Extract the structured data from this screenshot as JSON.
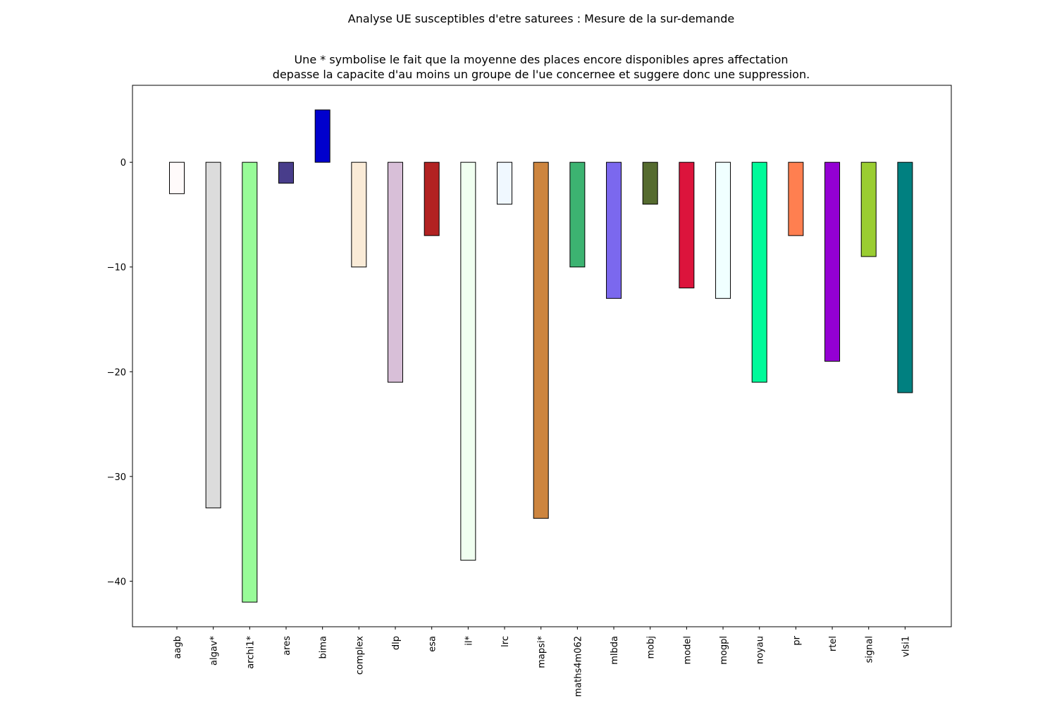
{
  "chart_data": {
    "type": "bar",
    "suptitle": "Analyse UE susceptibles d'etre saturees : Mesure de la sur-demande",
    "title_lines": [
      "Une * symbolise le fait que la moyenne des places encore disponibles apres affectation",
      "depasse la capacite d'au moins un groupe de l'ue concernee et suggere donc une suppression."
    ],
    "categories": [
      "aagb",
      "algav*",
      "archi1*",
      "ares",
      "bima",
      "complex",
      "dlp",
      "esa",
      "il*",
      "lrc",
      "mapsi*",
      "maths4m062",
      "mlbda",
      "mobj",
      "model",
      "mogpl",
      "noyau",
      "pr",
      "rtel",
      "signal",
      "vlsi1"
    ],
    "values": [
      -3,
      -33,
      -42,
      -2,
      5,
      -10,
      -21,
      -7,
      -38,
      -4,
      -34,
      -10,
      -13,
      -4,
      -12,
      -13,
      -21,
      -7,
      -19,
      -9,
      -22
    ],
    "colors": [
      "#fffafa",
      "#dcdcdc",
      "#98fb98",
      "#483d8b",
      "#0000cd",
      "#faebd7",
      "#d8bfd8",
      "#b22222",
      "#f0fff0",
      "#f0f8ff",
      "#cd853f",
      "#3cb371",
      "#7b68ee",
      "#556b2f",
      "#dc143c",
      "#f0ffff",
      "#00fa9a",
      "#ff7f50",
      "#9400d3",
      "#9acd32",
      "#008080"
    ],
    "yticks": [
      0,
      -10,
      -20,
      -30,
      -40
    ],
    "ytick_labels": [
      "0",
      "−10",
      "−20",
      "−30",
      "−40"
    ],
    "ylim": [
      -44.35,
      7.35
    ],
    "xlabel": "",
    "ylabel": "",
    "grid": false,
    "legend": false
  }
}
